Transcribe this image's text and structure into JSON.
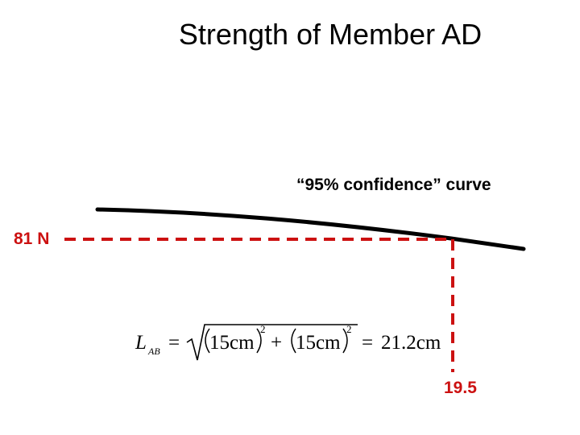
{
  "title": "Strength of Member AD",
  "curve_label": "“95% confidence” curve",
  "force_label": "81 N",
  "length_label": "19.5",
  "equation": {
    "lhs_symbol": "L",
    "lhs_subscript": "AB",
    "equals": "=",
    "term1": "15cm",
    "term2": "15cm",
    "exponent": "2",
    "plus": "+",
    "result": "21.2cm"
  },
  "colors": {
    "curve": "#000000",
    "guide_lines": "#cc1111",
    "text": "#000000"
  }
}
